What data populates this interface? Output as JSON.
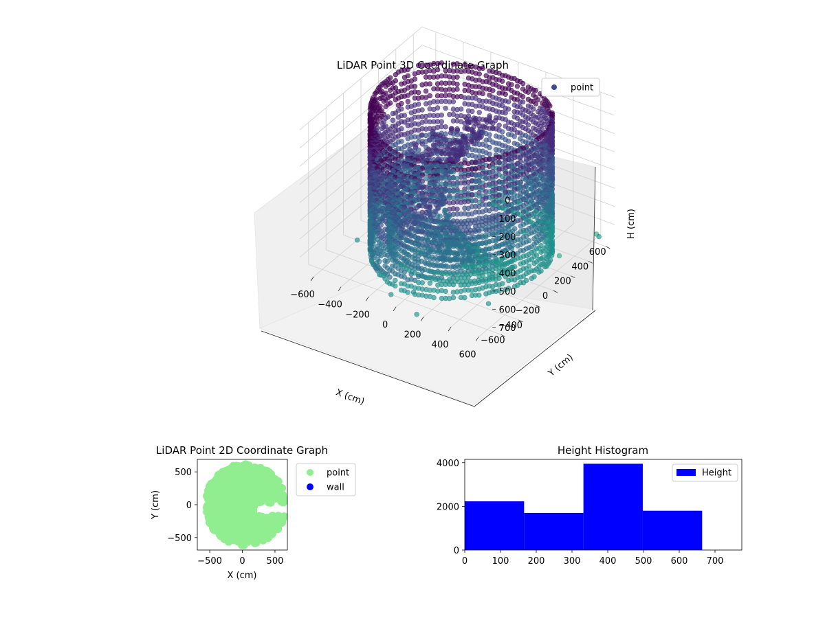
{
  "colors": {
    "viridis": [
      "#440154",
      "#472d7b",
      "#3b528b",
      "#2c728e",
      "#21918c",
      "#28ae80",
      "#5ec962"
    ],
    "pane_fill": "#f2f2f2",
    "grid": "#d0d0d0",
    "light_green": "#90ee90",
    "wall_blue": "#0000ff",
    "hist_blue": "#0000ff"
  },
  "chart_data": [
    {
      "id": "lidar-3d",
      "type": "scatter",
      "title": "LiDAR Point 3D Coordinate Graph",
      "xlabel": "X (cm)",
      "ylabel": "Y (cm)",
      "zlabel": "H (cm)",
      "xlim": [
        -700,
        700
      ],
      "ylim": [
        -700,
        700
      ],
      "zlim": [
        0,
        780
      ],
      "z_inverted": true,
      "x_ticks": [
        "−600",
        "−400",
        "−200",
        "0",
        "200",
        "400",
        "600"
      ],
      "y_ticks": [
        "−600",
        "−400",
        "−200",
        "0",
        "200",
        "400",
        "600"
      ],
      "z_ticks": [
        "0",
        "100",
        "200",
        "300",
        "400",
        "500",
        "600",
        "700"
      ],
      "legend": [
        "point"
      ],
      "legend_position": "top-right",
      "grid": true,
      "series": [
        {
          "name": "point",
          "shape": "ring of points around the room wall with an inner low ramp of points",
          "outlier_points": [
            [
              -600,
              -200,
              780
            ],
            [
              -550,
              -50,
              780
            ],
            [
              -520,
              150,
              760
            ],
            [
              -500,
              350,
              780
            ],
            [
              -400,
              -350,
              780
            ],
            [
              -380,
              -150,
              780
            ],
            [
              -300,
              300,
              700
            ],
            [
              -250,
              -450,
              780
            ],
            [
              -200,
              -100,
              780
            ],
            [
              -150,
              150,
              780
            ],
            [
              -100,
              -600,
              780
            ],
            [
              0,
              -500,
              780
            ],
            [
              50,
              150,
              780
            ],
            [
              150,
              -700,
              780
            ],
            [
              200,
              450,
              780
            ],
            [
              300,
              600,
              780
            ],
            [
              450,
              -350,
              780
            ],
            [
              520,
              350,
              780
            ],
            [
              600,
              650,
              760
            ],
            [
              650,
              600,
              740
            ]
          ]
        }
      ]
    },
    {
      "id": "lidar-2d",
      "type": "scatter",
      "title": "LiDAR Point 2D Coordinate Graph",
      "xlabel": "X (cm)",
      "ylabel": "Y (cm)",
      "xlim": [
        -690,
        690
      ],
      "ylim": [
        -690,
        690
      ],
      "x_ticks": [
        "−500",
        "0",
        "500"
      ],
      "y_ticks": [
        "−500",
        "0",
        "500"
      ],
      "legend": [
        "point",
        "wall"
      ],
      "legend_position": "outside-right",
      "series": [
        {
          "name": "point",
          "color": "#90ee90"
        },
        {
          "name": "wall",
          "color": "#0000ff"
        }
      ]
    },
    {
      "id": "height-hist",
      "type": "bar",
      "title": "Height Histogram",
      "xlim": [
        0,
        775
      ],
      "ylim": [
        0,
        4150
      ],
      "x_ticks": [
        "0",
        "100",
        "200",
        "300",
        "400",
        "500",
        "600",
        "700"
      ],
      "y_ticks": [
        "0",
        "2000",
        "4000"
      ],
      "legend": [
        "Height"
      ],
      "legend_position": "top-right",
      "bins": [
        {
          "start": 0,
          "end": 166,
          "count": 2230
        },
        {
          "start": 166,
          "end": 332,
          "count": 1700
        },
        {
          "start": 332,
          "end": 498,
          "count": 3950
        },
        {
          "start": 498,
          "end": 664,
          "count": 1800
        }
      ]
    }
  ]
}
